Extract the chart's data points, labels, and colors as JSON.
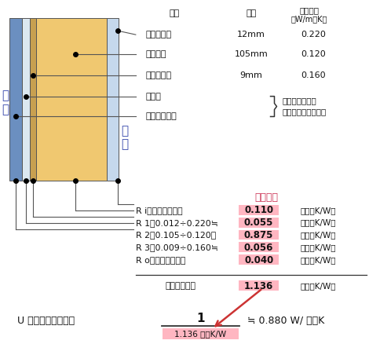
{
  "mat_header_col1": "材料",
  "mat_header_col2": "厚さ",
  "mat_header_col3_1": "熱伝導率",
  "mat_header_col3_2": "（W/m・K）",
  "mat_names": [
    "石膏ボード",
    "柱（杉）",
    "構造用合板",
    "通気層",
    "サイディング"
  ],
  "mat_thickness": [
    "12mm",
    "105mm",
    "9mm",
    "",
    ""
  ],
  "mat_lambda": [
    "0.220",
    "0.120",
    "0.160",
    "",
    ""
  ],
  "brace_note_1": "通気層から外は",
  "brace_note_2": "熱抵抗には含まない",
  "label_sotogai": "室\n外",
  "label_shitsunai": "室\n内",
  "resistance_header": "熱抵抗値",
  "resistance_rows": [
    [
      "R i：室内側熱抵抗",
      "0.110",
      "（㎡・K/W）"
    ],
    [
      "R 1：0.012÷0.220≒",
      "0.055",
      "（㎡・K/W）"
    ],
    [
      "R 2：0.105÷0.120＝",
      "0.875",
      "（㎡・K/W）"
    ],
    [
      "R 3：0.009÷0.160≒",
      "0.056",
      "（㎡・K/W）"
    ],
    [
      "R o：室外側熱抵抗",
      "0.040",
      "（㎡・K/W）"
    ]
  ],
  "total_label": "熱抵抗値合計",
  "total_value": "1.136",
  "total_unit": "（㎡・K/W）",
  "formula_left": "U 値（熱貫流率）＝",
  "formula_numerator": "1",
  "formula_denominator": "1.136 ㎡・K/W",
  "formula_result": "≒ 0.880 W/ ㎡・K",
  "colors": {
    "pink_bg": "#FFB6C1",
    "red_header": "#CC3355",
    "blue_label": "#3344AA",
    "wall_siding_blue": "#6B8FC0",
    "wall_gap_white": "#E8EFF5",
    "wall_plywood": "#C8A050",
    "wall_wood": "#F0C870",
    "wall_gypsum_blue": "#C5D8EC",
    "arrow_red": "#CC3333",
    "text_dark": "#111111",
    "line_color": "#555555",
    "bg_white": "#FFFFFF"
  }
}
